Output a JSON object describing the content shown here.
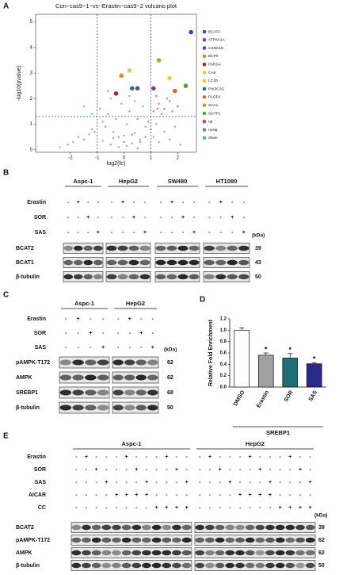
{
  "panel_labels": [
    "A",
    "B",
    "C",
    "D",
    "E"
  ],
  "chart_data": [
    {
      "type": "scatter",
      "title": "Con−cas9−1−vs−Erastin−cas9−2 volcano plot",
      "xlabel": "log2(fc)",
      "ylabel": "-log10(pvalue)",
      "xlim": [
        -3.3,
        2.7
      ],
      "xticks": [
        -2,
        -1,
        0,
        1,
        2
      ],
      "ylim": [
        -0.1,
        5.3
      ],
      "yticks": [
        0,
        1,
        2,
        3,
        4,
        5
      ],
      "vlines": [
        -1,
        1
      ],
      "hlines": [
        1.3
      ],
      "series": [
        {
          "name": "BCAT2",
          "color": "#1f4fbf",
          "x": [
            2.5
          ],
          "values": [
            4.6
          ]
        },
        {
          "name": "ATP6V1A",
          "color": "#7b3fa0",
          "x": [
            1.1
          ],
          "values": [
            2.4
          ]
        },
        {
          "name": "CSNK1D",
          "color": "#4a4fa8",
          "x": [
            0.5
          ],
          "values": [
            2.4
          ]
        },
        {
          "name": "BCP6",
          "color": "#e08a1e",
          "x": [
            -0.1
          ],
          "values": [
            2.9
          ]
        },
        {
          "name": "PARSA",
          "color": "#b01e3a",
          "x": [
            -0.3
          ],
          "values": [
            2.2
          ]
        },
        {
          "name": "CAK",
          "color": "#f0c93a",
          "x": [
            0.2
          ],
          "values": [
            3.1
          ]
        },
        {
          "name": "LC1D",
          "color": "#e8d21e",
          "x": [
            1.7
          ],
          "values": [
            2.8
          ]
        },
        {
          "name": "PIK3C2G",
          "color": "#2e7d5a",
          "x": [
            0.3
          ],
          "values": [
            2.4
          ]
        },
        {
          "name": "PLOD1",
          "color": "#d86a1e",
          "x": [
            1.9
          ],
          "values": [
            2.3
          ]
        },
        {
          "name": "SAA1",
          "color": "#b5a51e",
          "x": [
            1.3
          ],
          "values": [
            3.5
          ]
        },
        {
          "name": "SGTP1",
          "color": "#5aa02e",
          "x": [
            2.3
          ],
          "values": [
            2.5
          ]
        },
        {
          "name": "up",
          "color": "#e04040",
          "x": [
            1.1,
            1.3,
            1.5,
            1.6,
            1.2,
            1.8,
            1.4,
            2.0,
            1.7,
            1.25
          ],
          "values": [
            1.5,
            1.8,
            1.6,
            2.0,
            2.1,
            1.5,
            1.4,
            1.7,
            1.9,
            1.6
          ]
        },
        {
          "name": "nosig",
          "color": "#888888",
          "x": [
            -2.4,
            -2.1,
            -1.9,
            -1.7,
            -1.5,
            -1.3,
            -1.2,
            -1.1,
            -0.9,
            -0.8,
            -0.7,
            -0.6,
            -0.5,
            -0.4,
            -0.3,
            -0.2,
            -0.1,
            0,
            0.1,
            0.2,
            0.3,
            0.4,
            0.5,
            0.6,
            0.7,
            0.8,
            0.9,
            1.0,
            1.1,
            1.2,
            1.3,
            1.5,
            1.7,
            1.9,
            2.1,
            -0.5,
            -0.2,
            0.1,
            0.3,
            0.6,
            -0.8,
            -0.4,
            0.0,
            0.4,
            0.8,
            -0.6,
            0.2,
            0.5
          ],
          "values": [
            0.1,
            0.2,
            0.3,
            0.5,
            0.4,
            0.6,
            0.8,
            0.7,
            1.6,
            1.1,
            0.9,
            1.4,
            2.0,
            0.7,
            1.2,
            0.5,
            1.8,
            0.3,
            1.0,
            1.5,
            0.6,
            1.9,
            1.2,
            0.4,
            1.7,
            0.9,
            1.1,
            0.8,
            0.5,
            1.0,
            0.3,
            0.7,
            0.4,
            0.9,
            0.2,
            0.2,
            0.1,
            0.15,
            0.25,
            0.3,
            0.35,
            0.45,
            0.55,
            0.65,
            0.5,
            2.3,
            2.1,
            0.05
          ]
        },
        {
          "name": "down",
          "color": "#2ec4c4",
          "x": [
            -1.5,
            -1.2
          ],
          "values": [
            1.7,
            1.4
          ]
        }
      ]
    },
    {
      "type": "bar",
      "ylabel": "Relative Fold Enrichment",
      "xlabel": "SREBP1",
      "categories": [
        "DMSO",
        "Erastin",
        "SOR",
        "SAS"
      ],
      "values": [
        1.0,
        0.56,
        0.51,
        0.41
      ],
      "errors": [
        0.04,
        0.04,
        0.08,
        0.02
      ],
      "colors": [
        "#ffffff",
        "#a0a0a0",
        "#1f6f78",
        "#2a2a8a"
      ],
      "significance": [
        null,
        "*",
        "*",
        "*"
      ],
      "ylim": [
        0,
        1.2
      ],
      "yticks": [
        {
          "value": 0,
          "label": "0.0"
        },
        0.2,
        0.4,
        0.6,
        0.8,
        {
          "value": 1,
          "label": "1.0"
        },
        1.2
      ]
    }
  ],
  "kda_label": "(kDa)",
  "blots": [
    {
      "groups": [
        "Aspc-1",
        "HepG2",
        "SW480",
        "HT1080"
      ],
      "treatments": [
        {
          "label": "Erastin",
          "signs": [
            "-",
            "+",
            "-",
            "-"
          ]
        },
        {
          "label": "SOR",
          "signs": [
            "-",
            "-",
            "+",
            "-"
          ]
        },
        {
          "label": "SAS",
          "signs": [
            "-",
            "-",
            "-",
            "+"
          ]
        }
      ],
      "bands": [
        {
          "label": "BCAT2",
          "kda": 39
        },
        {
          "label": "BCAT1",
          "kda": 43
        },
        {
          "label": "β-tubulin",
          "kda": 50
        }
      ]
    },
    {
      "groups": [
        "Aspc-1",
        "HepG2"
      ],
      "treatments": [
        {
          "label": "Erastin",
          "signs": [
            "-",
            "+",
            "-",
            "-"
          ]
        },
        {
          "label": "SOR",
          "signs": [
            "-",
            "-",
            "+",
            "-"
          ]
        },
        {
          "label": "SAS",
          "signs": [
            "-",
            "-",
            "-",
            "+"
          ]
        }
      ],
      "bands": [
        {
          "label": "pAMPK-T172",
          "kda": 62
        },
        {
          "label": "AMPK",
          "kda": 62
        },
        {
          "label": "SREBP1",
          "kda": 68
        },
        {
          "label": "β-tubulin",
          "kda": 50
        }
      ]
    },
    {
      "groups": [
        "Aspc-1",
        "HepG2"
      ],
      "treatments": [
        {
          "label": "Erastin",
          "signs": [
            "-",
            "+",
            "-",
            "-",
            "-",
            "+",
            "-",
            "-",
            "-",
            "+",
            "-",
            "-"
          ]
        },
        {
          "label": "SOR",
          "signs": [
            "-",
            "-",
            "+",
            "-",
            "-",
            "-",
            "+",
            "-",
            "-",
            "-",
            "+",
            "-"
          ]
        },
        {
          "label": "SAS",
          "signs": [
            "-",
            "-",
            "-",
            "+",
            "-",
            "-",
            "-",
            "+",
            "-",
            "-",
            "-",
            "+"
          ]
        },
        {
          "label": "AICAR",
          "signs": [
            "-",
            "-",
            "-",
            "-",
            "+",
            "+",
            "+",
            "+",
            "-",
            "-",
            "-",
            "-"
          ]
        },
        {
          "label": "CC",
          "signs": [
            "-",
            "-",
            "-",
            "-",
            "-",
            "-",
            "-",
            "-",
            "+",
            "+",
            "+",
            "+"
          ]
        }
      ],
      "bands": [
        {
          "label": "BCAT2",
          "kda": 39
        },
        {
          "label": "pAMPK-T172",
          "kda": 62
        },
        {
          "label": "AMPK",
          "kda": 62
        },
        {
          "label": "β-tubulin",
          "kda": 50
        }
      ]
    }
  ]
}
